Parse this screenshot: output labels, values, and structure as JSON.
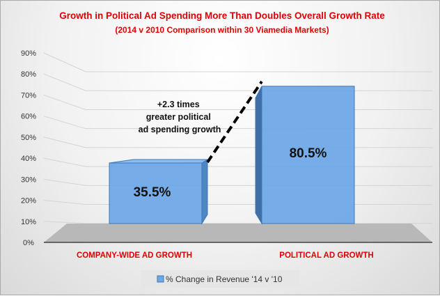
{
  "chart_data": {
    "type": "bar",
    "title": "Growth in Political Ad Spending More Than Doubles Overall Growth Rate",
    "subtitle": "(2014 v 2010 Comparison within 30 Viamedia Markets)",
    "categories": [
      "COMPANY-WIDE AD GROWTH",
      "POLITICAL AD GROWTH"
    ],
    "series": [
      {
        "name": "% Change in Revenue '14 v '10",
        "values": [
          35.5,
          80.5
        ]
      }
    ],
    "data_labels": [
      "35.5%",
      "80.5%"
    ],
    "ylim": [
      0,
      90
    ],
    "yticks": [
      "0%",
      "10%",
      "20%",
      "30%",
      "40%",
      "50%",
      "60%",
      "70%",
      "80%",
      "90%"
    ],
    "grid": true,
    "legend": "bottom",
    "annotation": [
      "+2.3 times",
      "greater political",
      "ad spending growth"
    ],
    "three_d": true,
    "colors": {
      "title": "#e00000",
      "category_labels": "#e00000",
      "bar": "#6fa8e6",
      "bar_edge": "#3f78b5",
      "floor": "#b8b8b8"
    }
  }
}
